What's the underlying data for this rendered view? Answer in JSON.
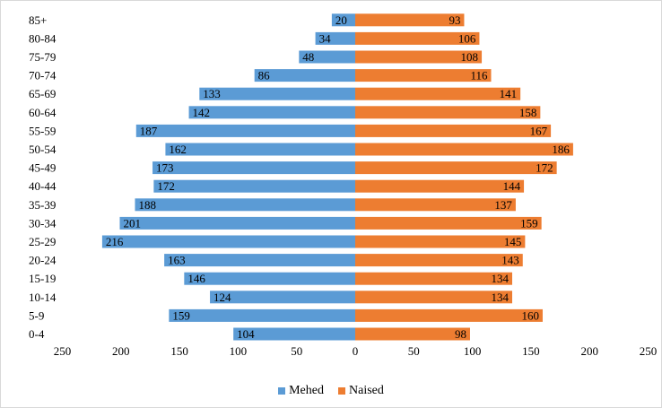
{
  "chart_data": {
    "type": "bar",
    "orientation": "horizontal",
    "layout": "population-pyramid",
    "categories": [
      "0-4",
      "5-9",
      "10-14",
      "15-19",
      "20-24",
      "25-29",
      "30-34",
      "35-39",
      "40-44",
      "45-49",
      "50-54",
      "55-59",
      "60-64",
      "65-69",
      "70-74",
      "75-79",
      "80-84",
      "85+"
    ],
    "series": [
      {
        "name": "Mehed",
        "color": "#5b9bd5",
        "side": "left",
        "values": [
          104,
          159,
          124,
          146,
          163,
          216,
          201,
          188,
          172,
          173,
          162,
          187,
          142,
          133,
          86,
          48,
          34,
          20
        ]
      },
      {
        "name": "Naised",
        "color": "#ed7d31",
        "side": "right",
        "values": [
          98,
          160,
          134,
          134,
          143,
          145,
          159,
          137,
          144,
          172,
          186,
          167,
          158,
          141,
          116,
          108,
          106,
          93
        ]
      }
    ],
    "xaxis": {
      "range": [
        -250,
        250
      ],
      "ticks": [
        -250,
        -200,
        -150,
        -100,
        -50,
        0,
        50,
        100,
        150,
        200,
        250
      ],
      "tick_labels": [
        "250",
        "200",
        "150",
        "100",
        "50",
        "0",
        "50",
        "100",
        "150",
        "200",
        "250"
      ]
    },
    "title": "",
    "xlabel": "",
    "ylabel": "",
    "data_labels": true,
    "grid": false,
    "legend_position": "bottom"
  }
}
